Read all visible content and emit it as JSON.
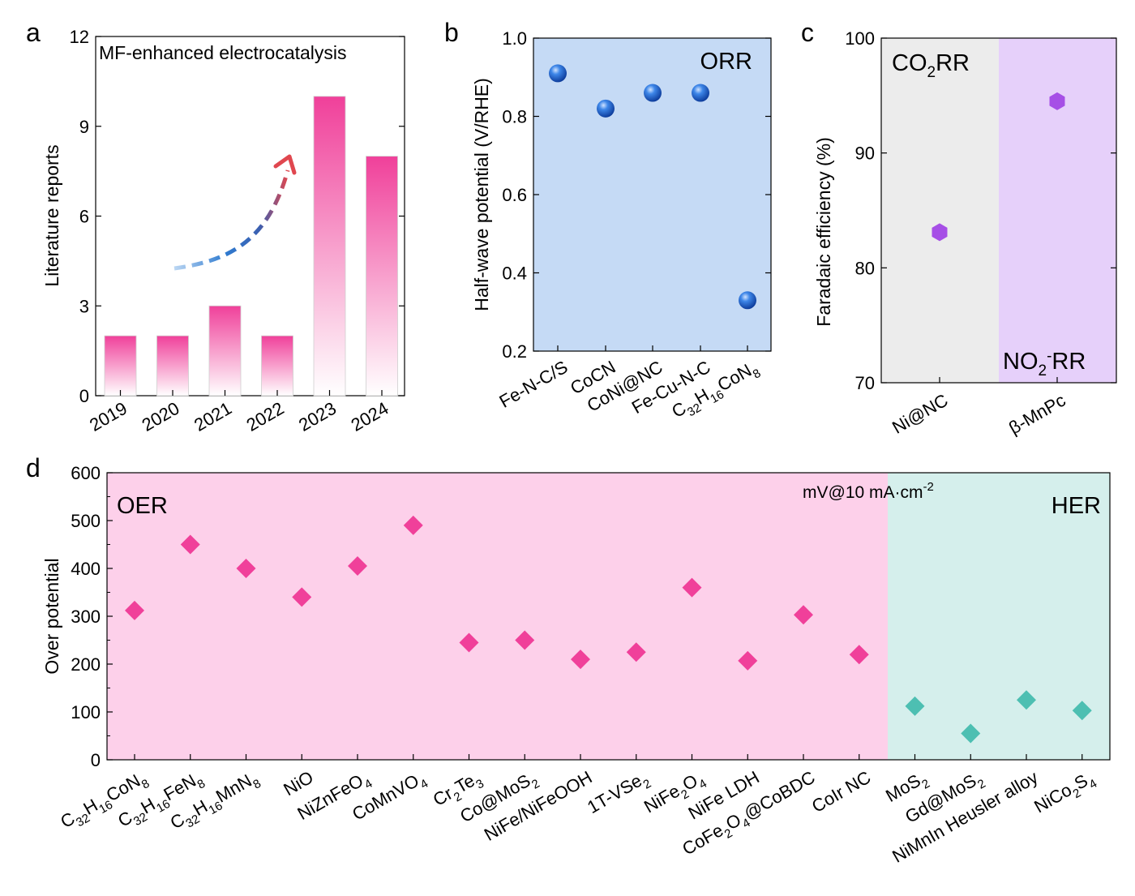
{
  "chart_data": [
    {
      "panel": "a",
      "type": "bar",
      "title": "MF-enhanced electrocatalysis",
      "xlabel": "",
      "ylabel": "Literature reports",
      "categories": [
        "2019",
        "2020",
        "2021",
        "2022",
        "2023",
        "2024"
      ],
      "values": [
        2,
        2,
        3,
        2,
        10,
        8
      ],
      "ylim": [
        0,
        12
      ],
      "yticks": [
        "0",
        "3",
        "6",
        "9",
        "12"
      ],
      "bar_gradient": [
        "#f0409a",
        "#ffffff"
      ],
      "annotation": "dashed arrow indicating increasing trend"
    },
    {
      "panel": "b",
      "type": "scatter",
      "region_label": "ORR",
      "xlabel": "",
      "ylabel": "Half-wave potential (V/RHE)",
      "categories": [
        "Fe-N-C/S",
        "CoCN",
        "CoNi@NC",
        "Fe-Cu-N-C",
        "C32H16CoN8"
      ],
      "values": [
        0.91,
        0.82,
        0.86,
        0.86,
        0.33
      ],
      "ylim": [
        0.2,
        1.0
      ],
      "yticks": [
        "0.2",
        "0.4",
        "0.6",
        "0.8",
        "1.0"
      ],
      "background": "#c5daf5",
      "marker_color": "#1f5fcf"
    },
    {
      "panel": "c",
      "type": "scatter",
      "ylabel": "Faradaic efficiency (%)",
      "categories": [
        "Ni@NC",
        "β-MnPc"
      ],
      "values": [
        83.1,
        94.5
      ],
      "regions": [
        "CO2RR",
        "NO2-RR"
      ],
      "ylim": [
        70,
        100
      ],
      "yticks": [
        "70",
        "80",
        "90",
        "100"
      ],
      "backgrounds": [
        "#ececec",
        "#e6d0fa"
      ],
      "marker_color": "#a64fe6"
    },
    {
      "panel": "d",
      "type": "scatter",
      "ylabel": "Over potential",
      "note": "mV@10 mA·cm-2",
      "regions": [
        "OER",
        "HER"
      ],
      "categories": [
        "C32H16CoN8",
        "C32H16FeN8",
        "C32H16MnN8",
        "NiO",
        "NiZnFeO4",
        "CoMnVO4",
        "Cr2Te3",
        "Co@MoS2",
        "NiFe/NiFeOOH",
        "1T-VSe2",
        "NiFe2O4",
        "NiFe LDH",
        "CoFe2O4@CoBDC",
        "CoIr NC",
        "MoS2",
        "Gd@MoS2",
        "NiMnIn Heusler alloy",
        "NiCo2S4"
      ],
      "values": [
        312,
        450,
        400,
        340,
        405,
        490,
        245,
        250,
        210,
        225,
        360,
        207,
        303,
        220,
        112,
        55,
        125,
        103
      ],
      "region_of_point": [
        "OER",
        "OER",
        "OER",
        "OER",
        "OER",
        "OER",
        "OER",
        "OER",
        "OER",
        "OER",
        "OER",
        "OER",
        "OER",
        "OER",
        "HER",
        "HER",
        "HER",
        "HER"
      ],
      "ylim": [
        0,
        600
      ],
      "yticks": [
        "0",
        "100",
        "200",
        "300",
        "400",
        "500",
        "600"
      ],
      "backgrounds": [
        "#fdd0ea",
        "#d5efec"
      ],
      "marker_colors": [
        "#f0409a",
        "#4dbfb2"
      ]
    }
  ]
}
